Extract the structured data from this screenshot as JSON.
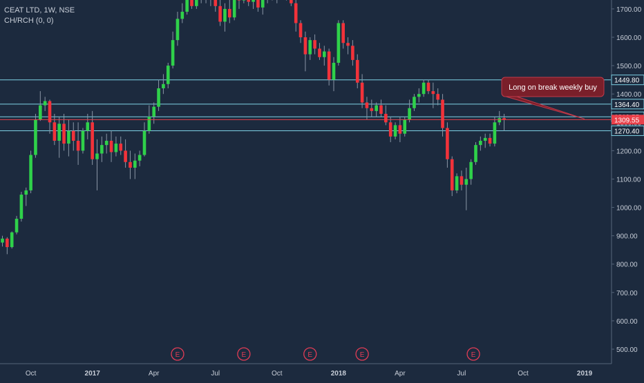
{
  "header": {
    "symbol_line": "CEAT LTD, 1W, NSE",
    "indicator_line": "CH/RCH (0, 0)"
  },
  "colors": {
    "background": "#1c2a3e",
    "up": "#2fd14a",
    "down": "#f2323a",
    "wick": "#8a96a6",
    "level_line": "#7fd3e6",
    "price_line": "#e8404a",
    "axis_text": "#c8ced8",
    "callout_bg": "#7a1f2a",
    "earnings": "#e23c55"
  },
  "chart_data": {
    "type": "candlestick",
    "title": "CEAT LTD, 1W, NSE",
    "indicator": "CH/RCH (0, 0)",
    "ylim": [
      450,
      1760
    ],
    "y_ticks": [
      500,
      600,
      700,
      800,
      900,
      1000,
      1100,
      1200,
      1300,
      1400,
      1500,
      1600,
      1700
    ],
    "y_tick_labels": [
      "500.00",
      "600.00",
      "700.00",
      "800.00",
      "900.00",
      "1000.00",
      "1100.00",
      "1200.00",
      "1300.00",
      "1400.00",
      "1500.00",
      "1600.00",
      "1700.00"
    ],
    "x_tick_labels": [
      "Oct",
      "2017",
      "Apr",
      "Jul",
      "Oct",
      "2018",
      "Apr",
      "Jul",
      "Oct",
      "2019",
      "Apr",
      "Jul"
    ],
    "x_tick_bold": [
      false,
      true,
      false,
      false,
      false,
      true,
      false,
      false,
      false,
      true,
      false,
      false
    ],
    "x_range_weeks": [
      0,
      148
    ],
    "x_tick_weeks": [
      6,
      19,
      32,
      45,
      58,
      71,
      84,
      97,
      110,
      123,
      136,
      149
    ],
    "price_levels": [
      {
        "label": "1449.80",
        "value": 1449.8
      },
      {
        "label": "1364.40",
        "value": 1364.4
      },
      {
        "label": "1319.55",
        "value": 1319.55
      },
      {
        "label": "1270.40",
        "value": 1270.4
      }
    ],
    "last_price": {
      "label": "1309.55",
      "value": 1309.55
    },
    "annotation": {
      "text": "Long on break weekly buy",
      "week": 123,
      "price": 1312
    },
    "earnings_weeks": [
      37,
      51,
      65,
      76,
      99.5
    ],
    "earnings_label": "E",
    "candles": [
      [
        876,
        900,
        862,
        890
      ],
      [
        890,
        895,
        835,
        860
      ],
      [
        860,
        915,
        855,
        912
      ],
      [
        912,
        970,
        905,
        960
      ],
      [
        960,
        1055,
        950,
        1045
      ],
      [
        1045,
        1070,
        1005,
        1060
      ],
      [
        1060,
        1200,
        1050,
        1185
      ],
      [
        1185,
        1330,
        1175,
        1310
      ],
      [
        1310,
        1410,
        1305,
        1360
      ],
      [
        1360,
        1390,
        1340,
        1375
      ],
      [
        1375,
        1380,
        1260,
        1300
      ],
      [
        1300,
        1330,
        1220,
        1235
      ],
      [
        1235,
        1320,
        1175,
        1295
      ],
      [
        1295,
        1330,
        1200,
        1225
      ],
      [
        1225,
        1310,
        1180,
        1270
      ],
      [
        1270,
        1300,
        1200,
        1235
      ],
      [
        1235,
        1300,
        1150,
        1200
      ],
      [
        1200,
        1280,
        1190,
        1270
      ],
      [
        1270,
        1330,
        1240,
        1300
      ],
      [
        1300,
        1340,
        1150,
        1170
      ],
      [
        1170,
        1240,
        1060,
        1190
      ],
      [
        1190,
        1250,
        1160,
        1220
      ],
      [
        1220,
        1260,
        1190,
        1235
      ],
      [
        1235,
        1270,
        1160,
        1195
      ],
      [
        1195,
        1250,
        1180,
        1225
      ],
      [
        1225,
        1250,
        1185,
        1200
      ],
      [
        1200,
        1240,
        1140,
        1160
      ],
      [
        1160,
        1200,
        1100,
        1140
      ],
      [
        1140,
        1190,
        1100,
        1165
      ],
      [
        1165,
        1200,
        1145,
        1185
      ],
      [
        1185,
        1300,
        1180,
        1270
      ],
      [
        1270,
        1360,
        1260,
        1320
      ],
      [
        1320,
        1370,
        1295,
        1355
      ],
      [
        1355,
        1450,
        1340,
        1420
      ],
      [
        1420,
        1470,
        1400,
        1435
      ],
      [
        1435,
        1510,
        1420,
        1500
      ],
      [
        1500,
        1620,
        1490,
        1590
      ],
      [
        1590,
        1690,
        1570,
        1665
      ],
      [
        1665,
        1720,
        1650,
        1690
      ],
      [
        1690,
        1760,
        1680,
        1740
      ],
      [
        1740,
        1760,
        1700,
        1710
      ],
      [
        1710,
        1760,
        1700,
        1750
      ],
      [
        1750,
        1760,
        1720,
        1740
      ],
      [
        1740,
        1760,
        1720,
        1750
      ],
      [
        1750,
        1760,
        1710,
        1740
      ],
      [
        1740,
        1760,
        1690,
        1710
      ],
      [
        1710,
        1740,
        1640,
        1655
      ],
      [
        1655,
        1720,
        1620,
        1700
      ],
      [
        1700,
        1750,
        1650,
        1670
      ],
      [
        1670,
        1760,
        1660,
        1740
      ],
      [
        1740,
        1760,
        1700,
        1730
      ],
      [
        1730,
        1760,
        1720,
        1745
      ],
      [
        1745,
        1760,
        1710,
        1725
      ],
      [
        1725,
        1750,
        1700,
        1735
      ],
      [
        1735,
        1760,
        1690,
        1705
      ],
      [
        1705,
        1760,
        1680,
        1745
      ],
      [
        1745,
        1760,
        1720,
        1750
      ],
      [
        1750,
        1760,
        1730,
        1745
      ],
      [
        1745,
        1760,
        1720,
        1750
      ],
      [
        1750,
        1760,
        1740,
        1755
      ],
      [
        1755,
        1760,
        1730,
        1745
      ],
      [
        1745,
        1760,
        1710,
        1720
      ],
      [
        1720,
        1750,
        1620,
        1650
      ],
      [
        1650,
        1660,
        1580,
        1600
      ],
      [
        1600,
        1620,
        1480,
        1540
      ],
      [
        1540,
        1600,
        1520,
        1590
      ],
      [
        1590,
        1610,
        1540,
        1560
      ],
      [
        1560,
        1580,
        1520,
        1530
      ],
      [
        1530,
        1570,
        1500,
        1550
      ],
      [
        1550,
        1560,
        1430,
        1450
      ],
      [
        1450,
        1530,
        1410,
        1510
      ],
      [
        1510,
        1660,
        1500,
        1650
      ],
      [
        1650,
        1660,
        1560,
        1580
      ],
      [
        1580,
        1600,
        1540,
        1570
      ],
      [
        1570,
        1590,
        1500,
        1520
      ],
      [
        1520,
        1540,
        1420,
        1440
      ],
      [
        1440,
        1470,
        1350,
        1370
      ],
      [
        1370,
        1390,
        1310,
        1350
      ],
      [
        1350,
        1380,
        1320,
        1340
      ],
      [
        1340,
        1370,
        1320,
        1360
      ],
      [
        1360,
        1380,
        1320,
        1330
      ],
      [
        1330,
        1360,
        1290,
        1300
      ],
      [
        1300,
        1320,
        1230,
        1250
      ],
      [
        1250,
        1300,
        1240,
        1290
      ],
      [
        1290,
        1320,
        1230,
        1260
      ],
      [
        1260,
        1320,
        1250,
        1310
      ],
      [
        1310,
        1380,
        1300,
        1350
      ],
      [
        1350,
        1400,
        1340,
        1390
      ],
      [
        1390,
        1420,
        1370,
        1400
      ],
      [
        1400,
        1450,
        1390,
        1440
      ],
      [
        1440,
        1450,
        1400,
        1410
      ],
      [
        1410,
        1440,
        1350,
        1400
      ],
      [
        1400,
        1420,
        1360,
        1380
      ],
      [
        1380,
        1400,
        1250,
        1280
      ],
      [
        1280,
        1300,
        1140,
        1170
      ],
      [
        1170,
        1180,
        1040,
        1060
      ],
      [
        1060,
        1120,
        1050,
        1110
      ],
      [
        1110,
        1130,
        1060,
        1080
      ],
      [
        1080,
        1140,
        990,
        1100
      ],
      [
        1100,
        1170,
        1080,
        1160
      ],
      [
        1160,
        1230,
        1150,
        1220
      ],
      [
        1220,
        1250,
        1200,
        1235
      ],
      [
        1235,
        1260,
        1210,
        1245
      ],
      [
        1245,
        1260,
        1215,
        1225
      ],
      [
        1225,
        1320,
        1215,
        1300
      ],
      [
        1300,
        1340,
        1290,
        1315
      ],
      [
        1315,
        1330,
        1270,
        1310
      ]
    ]
  }
}
